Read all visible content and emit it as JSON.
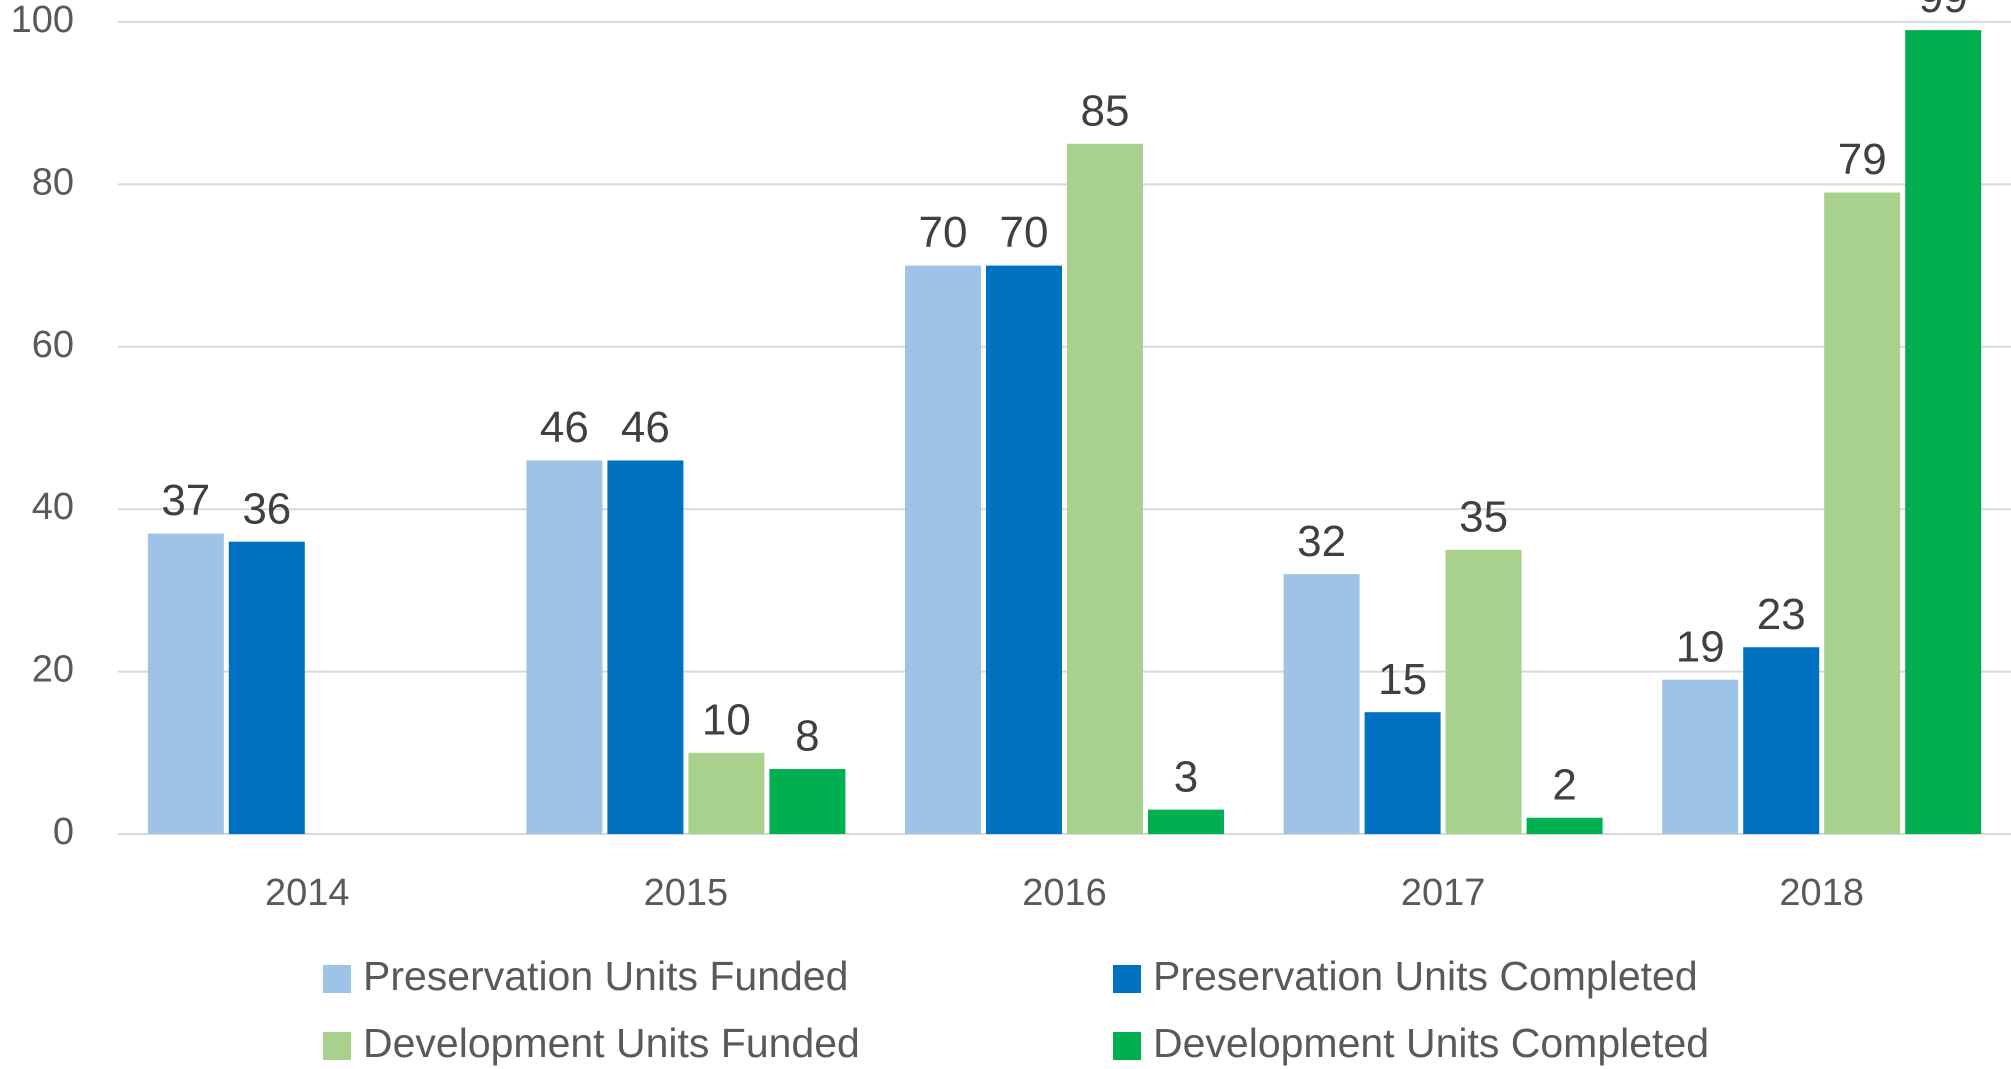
{
  "chart_data": {
    "type": "bar",
    "categories": [
      "2014",
      "2015",
      "2016",
      "2017",
      "2018"
    ],
    "series": [
      {
        "name": "Preservation Units Funded",
        "color": "#9dc3e6",
        "values": [
          37,
          46,
          70,
          32,
          19
        ]
      },
      {
        "name": "Preservation Units Completed",
        "color": "#0070c0",
        "values": [
          36,
          46,
          70,
          15,
          23
        ]
      },
      {
        "name": "Development Units Funded",
        "color": "#a9d18e",
        "values": [
          null,
          10,
          85,
          35,
          79
        ]
      },
      {
        "name": "Development Units Completed",
        "color": "#00b050",
        "values": [
          null,
          8,
          3,
          2,
          99
        ]
      }
    ],
    "ylim": [
      0,
      100
    ],
    "yticks": [
      0,
      20,
      40,
      60,
      80,
      100
    ],
    "grid": true,
    "legend": "bottom"
  }
}
